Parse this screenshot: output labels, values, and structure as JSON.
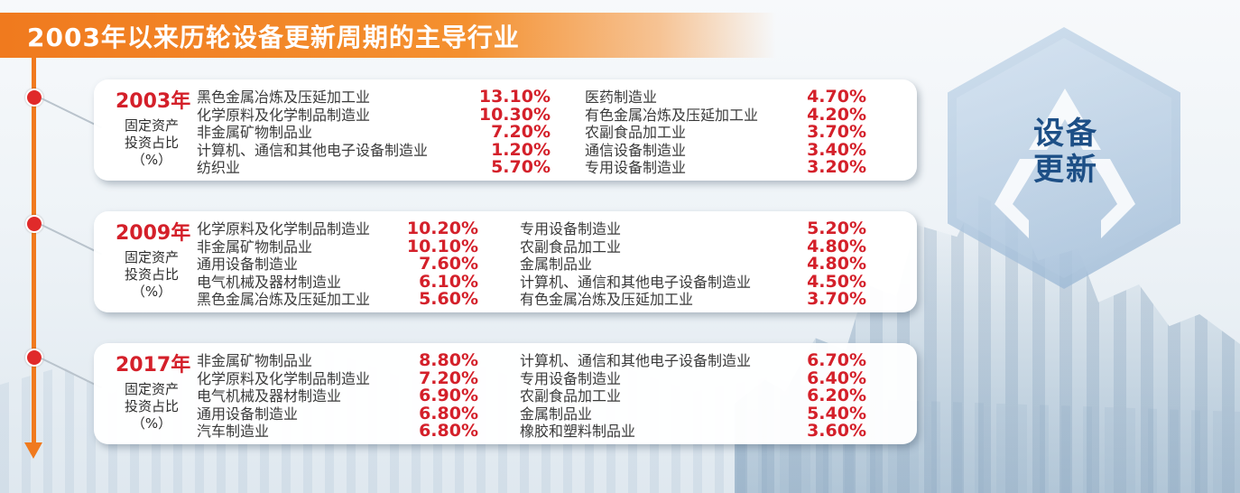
{
  "title": "2003年以来历轮设备更新周期的主导行业",
  "emblem": {
    "line1": "设备",
    "line2": "更新"
  },
  "chart_data": {
    "type": "table",
    "title": "2003年以来历轮设备更新周期的主导行业",
    "unit_label": [
      "固定资产",
      "投资占比",
      "（%）"
    ],
    "groups": [
      {
        "year": "2003年",
        "entries": [
          {
            "industry": "黑色金属冶炼及压延加工业",
            "value": "13.10%"
          },
          {
            "industry": "化学原料及化学制品制造业",
            "value": "10.30%"
          },
          {
            "industry": "非金属矿物制品业",
            "value": "7.20%"
          },
          {
            "industry": "计算机、通信和其他电子设备制造业",
            "value": "1.20%"
          },
          {
            "industry": "纺织业",
            "value": "5.70%"
          },
          {
            "industry": "医药制造业",
            "value": "4.70%"
          },
          {
            "industry": "有色金属冶炼及压延加工业",
            "value": "4.20%"
          },
          {
            "industry": "农副食品加工业",
            "value": "3.70%"
          },
          {
            "industry": "通信设备制造业",
            "value": "3.40%"
          },
          {
            "industry": "专用设备制造业",
            "value": "3.20%"
          }
        ]
      },
      {
        "year": "2009年",
        "entries": [
          {
            "industry": "化学原料及化学制品制造业",
            "value": "10.20%"
          },
          {
            "industry": "非金属矿物制品业",
            "value": "10.10%"
          },
          {
            "industry": "通用设备制造业",
            "value": "7.60%"
          },
          {
            "industry": "电气机械及器材制造业",
            "value": "6.10%"
          },
          {
            "industry": "黑色金属冶炼及压延加工业",
            "value": "5.60%"
          },
          {
            "industry": "专用设备制造业",
            "value": "5.20%"
          },
          {
            "industry": "农副食品加工业",
            "value": "4.80%"
          },
          {
            "industry": "金属制品业",
            "value": "4.80%"
          },
          {
            "industry": "计算机、通信和其他电子设备制造业",
            "value": "4.50%"
          },
          {
            "industry": "有色金属冶炼及压延加工业",
            "value": "3.70%"
          }
        ]
      },
      {
        "year": "2017年",
        "entries": [
          {
            "industry": "非金属矿物制品业",
            "value": "8.80%"
          },
          {
            "industry": "化学原料及化学制品制造业",
            "value": "7.20%"
          },
          {
            "industry": "电气机械及器材制造业",
            "value": "6.90%"
          },
          {
            "industry": "通用设备制造业",
            "value": "6.80%"
          },
          {
            "industry": "汽车制造业",
            "value": "6.80%"
          },
          {
            "industry": "计算机、通信和其他电子设备制造业",
            "value": "6.70%"
          },
          {
            "industry": "专用设备制造业",
            "value": "6.40%"
          },
          {
            "industry": "农副食品加工业",
            "value": "6.20%"
          },
          {
            "industry": "金属制品业",
            "value": "5.40%"
          },
          {
            "industry": "橡胶和塑料制品业",
            "value": "3.60%"
          }
        ]
      }
    ]
  },
  "colors": {
    "accent": "#f07a1e",
    "value": "#d4202a",
    "emblem": "#1d4f86"
  }
}
